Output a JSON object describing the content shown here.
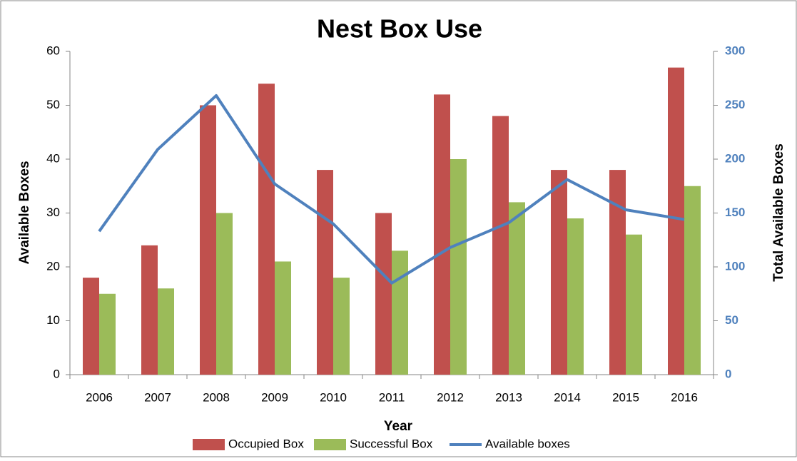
{
  "chart_data": {
    "type": "bar",
    "title": "Nest Box Use",
    "x_label": "Year",
    "y_label": "Available Boxes",
    "y2_label": "Total Available Boxes",
    "categories": [
      "2006",
      "2007",
      "2008",
      "2009",
      "2010",
      "2011",
      "2012",
      "2013",
      "2014",
      "2015",
      "2016"
    ],
    "series": [
      {
        "name": "Occupied Box",
        "type": "bar",
        "color": "#c0504d",
        "values": [
          18,
          24,
          50,
          54,
          38,
          30,
          52,
          48,
          38,
          38,
          57
        ]
      },
      {
        "name": "Successful Box",
        "type": "bar",
        "color": "#9bbb59",
        "values": [
          15,
          16,
          30,
          21,
          18,
          23,
          40,
          32,
          29,
          26,
          35
        ]
      },
      {
        "name": "Available boxes",
        "type": "line",
        "axis": "y2",
        "color": "#4f81bd",
        "values": [
          133,
          209,
          259,
          177,
          140,
          85,
          118,
          141,
          181,
          153,
          144
        ]
      }
    ],
    "ylim": [
      0,
      60
    ],
    "yticks": [
      0,
      10,
      20,
      30,
      40,
      50,
      60
    ],
    "y2lim": [
      0,
      300
    ],
    "y2ticks": [
      0,
      50,
      100,
      150,
      200,
      250,
      300
    ],
    "grid": false,
    "legend": "bottom"
  }
}
